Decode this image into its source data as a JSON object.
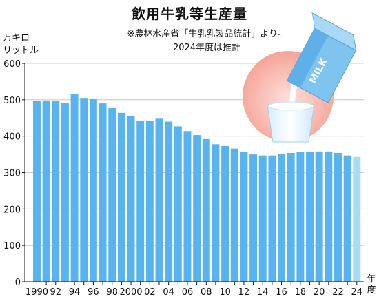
{
  "chart_data": {
    "type": "bar",
    "title": "飲用牛乳等生産量",
    "notes": [
      "※農林水産省「牛乳乳製品統計」より。",
      "2024年度は推計"
    ],
    "ylabel": [
      "万キロ",
      "リットル"
    ],
    "xlabel": [
      "年",
      "度"
    ],
    "ylim": [
      0,
      600
    ],
    "yticks": [
      0,
      100,
      200,
      300,
      400,
      500,
      600
    ],
    "categories": [
      1990,
      1991,
      1992,
      1993,
      1994,
      1995,
      1996,
      1997,
      1998,
      1999,
      2000,
      2001,
      2002,
      2003,
      2004,
      2005,
      2006,
      2007,
      2008,
      2009,
      2010,
      2011,
      2012,
      2013,
      2014,
      2015,
      2016,
      2017,
      2018,
      2019,
      2020,
      2021,
      2022,
      2023,
      2024
    ],
    "xtick_labels": [
      "1990",
      "92",
      "94",
      "96",
      "98",
      "2000",
      "02",
      "04",
      "06",
      "08",
      "10",
      "12",
      "14",
      "16",
      "18",
      "20",
      "22",
      "24"
    ],
    "values": [
      496,
      498,
      496,
      492,
      516,
      505,
      503,
      490,
      477,
      464,
      456,
      441,
      443,
      448,
      440,
      427,
      414,
      403,
      392,
      378,
      373,
      366,
      356,
      350,
      347,
      347,
      351,
      354,
      356,
      357,
      358,
      358,
      354,
      347,
      343
    ],
    "estimated_index": 34,
    "colors": {
      "bar": "#58b4f0",
      "bar_estimated": "#a6dcf5",
      "circle": "#f7a39a",
      "carton": "#7fc4ef"
    },
    "illustration": {
      "carton_text": "MILK"
    }
  }
}
